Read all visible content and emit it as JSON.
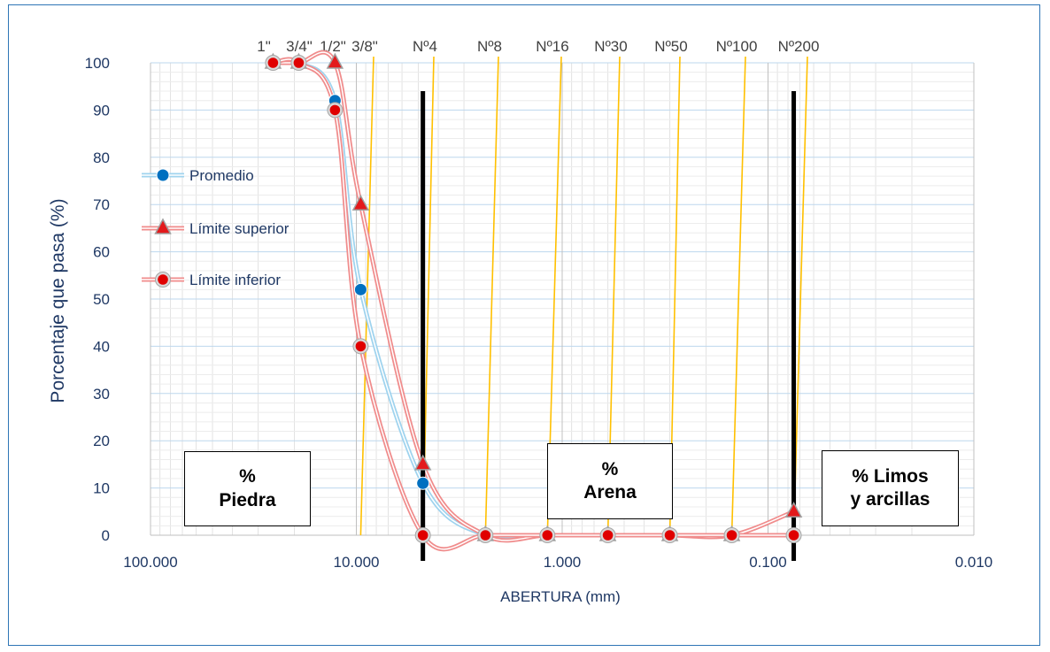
{
  "chart_data": {
    "type": "line",
    "xscale": "log",
    "x_reversed": true,
    "xlim": [
      100,
      0.01
    ],
    "ylim": [
      0,
      100
    ],
    "xlabel": "ABERTURA (mm)",
    "ylabel": "Porcentaje que pasa (%)",
    "x_ticks": [
      {
        "value": 100,
        "label": "100.000"
      },
      {
        "value": 10,
        "label": "10.000"
      },
      {
        "value": 1,
        "label": "1.000"
      },
      {
        "value": 0.1,
        "label": "0.100"
      },
      {
        "value": 0.01,
        "label": "0.010"
      }
    ],
    "y_ticks": [
      0,
      10,
      20,
      30,
      40,
      50,
      60,
      70,
      80,
      90,
      100
    ],
    "grid": true,
    "legend_position": "left",
    "sieves": [
      {
        "label": "1\"",
        "x": 25.4
      },
      {
        "label": "3/4\"",
        "x": 19.05
      },
      {
        "label": "1/2\"",
        "x": 12.7
      },
      {
        "label": "3/8\"",
        "x": 9.525
      },
      {
        "label": "Nº4",
        "x": 4.75
      },
      {
        "label": "Nº8",
        "x": 2.36
      },
      {
        "label": "Nº16",
        "x": 1.18
      },
      {
        "label": "Nº30",
        "x": 0.6
      },
      {
        "label": "Nº50",
        "x": 0.3
      },
      {
        "label": "Nº100",
        "x": 0.15
      },
      {
        "label": "Nº200",
        "x": 0.075
      }
    ],
    "dividers": [
      4.75,
      0.075
    ],
    "series": [
      {
        "name": "Promedio",
        "color": "#0070c0",
        "marker": "circle",
        "x": [
          25.4,
          19.05,
          12.7,
          9.525,
          4.75,
          2.36,
          1.18,
          0.6,
          0.3,
          0.15,
          0.075
        ],
        "y": [
          100,
          100,
          92,
          52,
          11,
          0,
          0,
          0,
          0,
          0,
          0
        ]
      },
      {
        "name": "Límite superior",
        "color": "#e31a1c",
        "marker": "triangle",
        "x": [
          25.4,
          19.05,
          12.7,
          9.525,
          4.75,
          2.36,
          1.18,
          0.6,
          0.3,
          0.15,
          0.075
        ],
        "y": [
          100,
          100,
          100,
          70,
          15,
          0,
          0,
          0,
          0,
          0,
          5
        ]
      },
      {
        "name": "Límite inferior",
        "color": "#e31a1c",
        "marker": "ring",
        "x": [
          25.4,
          19.05,
          12.7,
          9.525,
          4.75,
          2.36,
          1.18,
          0.6,
          0.3,
          0.15,
          0.075
        ],
        "y": [
          100,
          100,
          90,
          40,
          0,
          0,
          0,
          0,
          0,
          0,
          0
        ]
      }
    ]
  },
  "zones": [
    {
      "id": "piedra",
      "text": "%\nPiedra"
    },
    {
      "id": "arena",
      "text": "%\nArena"
    },
    {
      "id": "limos",
      "text": "% Limos\ny arcillas"
    }
  ]
}
